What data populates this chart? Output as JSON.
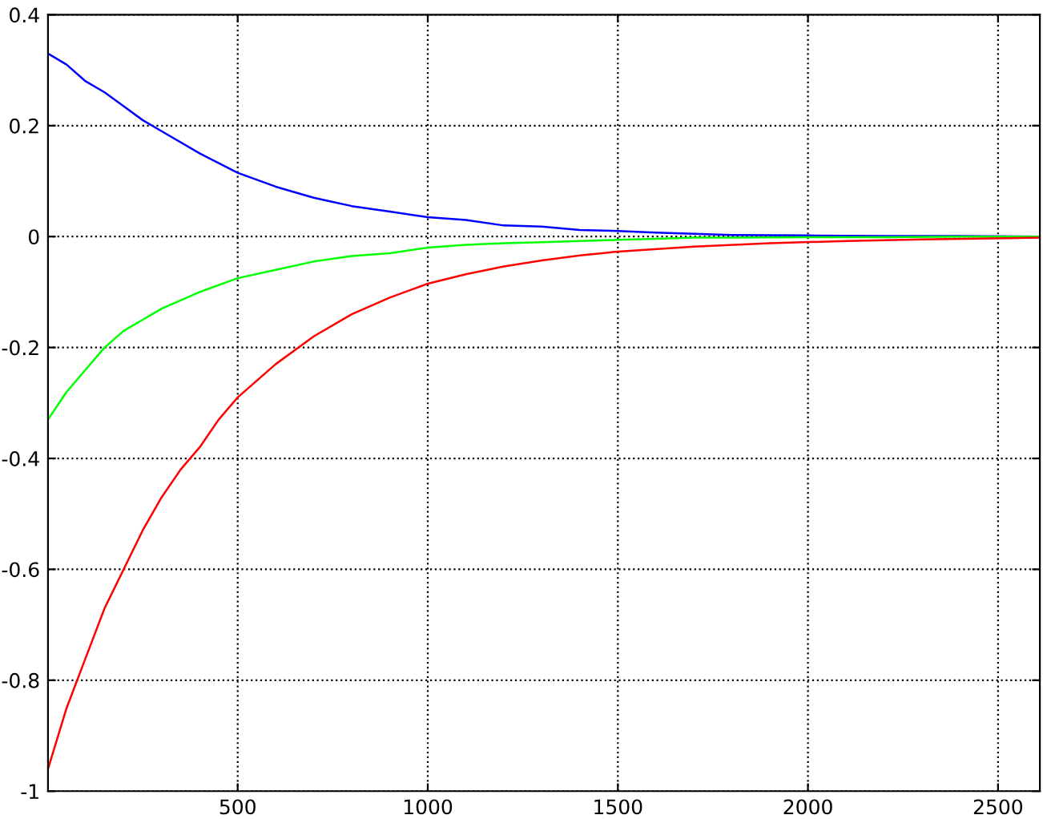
{
  "chart_data": {
    "type": "line",
    "xlim": [
      1,
      2610
    ],
    "ylim": [
      -1,
      0.4
    ],
    "xticks": [
      500,
      1000,
      1500,
      2000,
      2500
    ],
    "yticks": [
      -1,
      -0.8,
      -0.6,
      -0.4,
      -0.2,
      0,
      0.2,
      0.4
    ],
    "grid": true,
    "line_style": "solid",
    "marker": "none",
    "series": [
      {
        "color": "#0000ff",
        "x": [
          1,
          50,
          100,
          150,
          200,
          250,
          300,
          400,
          500,
          600,
          700,
          800,
          900,
          1000,
          1100,
          1200,
          1300,
          1400,
          1500,
          1600,
          1700,
          1800,
          2000,
          2200,
          2400,
          2610
        ],
        "values": [
          0.33,
          0.31,
          0.28,
          0.26,
          0.235,
          0.21,
          0.19,
          0.15,
          0.115,
          0.09,
          0.07,
          0.055,
          0.045,
          0.035,
          0.03,
          0.02,
          0.018,
          0.012,
          0.01,
          0.007,
          0.005,
          0.003,
          0.002,
          0.001,
          0.001,
          0
        ]
      },
      {
        "color": "#00ff00",
        "x": [
          1,
          50,
          100,
          150,
          200,
          250,
          300,
          400,
          500,
          600,
          700,
          800,
          900,
          1000,
          1100,
          1200,
          1300,
          1400,
          1500,
          1600,
          1700,
          1800,
          2000,
          2200,
          2400,
          2610
        ],
        "values": [
          -0.33,
          -0.28,
          -0.24,
          -0.2,
          -0.17,
          -0.15,
          -0.13,
          -0.1,
          -0.075,
          -0.06,
          -0.045,
          -0.035,
          -0.03,
          -0.02,
          -0.015,
          -0.012,
          -0.01,
          -0.008,
          -0.006,
          -0.004,
          -0.002,
          -0.002,
          -0.001,
          -0.001,
          0,
          0
        ]
      },
      {
        "color": "#ff0000",
        "x": [
          1,
          50,
          100,
          150,
          200,
          250,
          300,
          350,
          400,
          450,
          500,
          600,
          700,
          800,
          900,
          1000,
          1100,
          1200,
          1300,
          1400,
          1500,
          1700,
          1900,
          2100,
          2300,
          2610
        ],
        "values": [
          -0.96,
          -0.85,
          -0.76,
          -0.67,
          -0.6,
          -0.53,
          -0.47,
          -0.42,
          -0.38,
          -0.33,
          -0.29,
          -0.23,
          -0.18,
          -0.14,
          -0.11,
          -0.085,
          -0.068,
          -0.054,
          -0.043,
          -0.034,
          -0.027,
          -0.018,
          -0.012,
          -0.008,
          -0.005,
          -0.002
        ]
      }
    ]
  }
}
